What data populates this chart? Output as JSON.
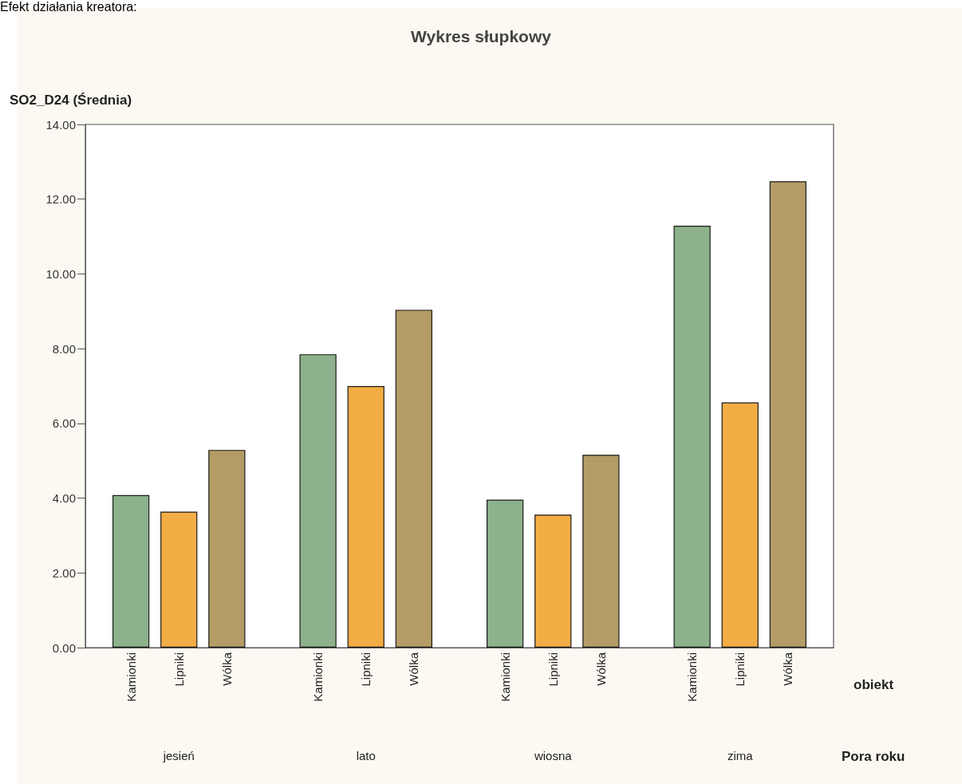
{
  "chart_data": {
    "type": "bar",
    "title": "Wykres słupkowy",
    "ylabel": "SO2_D24 (Średnia)",
    "xlabel": "Pora roku",
    "legend_title": "obiekt",
    "annotations": [
      "Efekt działania kreatora:"
    ],
    "categories": [
      "jesień",
      "lato",
      "wiosna",
      "zima"
    ],
    "series": [
      {
        "name": "Kamionki",
        "color": "#8db28b",
        "values": [
          4.08,
          7.85,
          3.96,
          11.29
        ]
      },
      {
        "name": "Lipniki",
        "color": "#f2ad45",
        "values": [
          3.64,
          7.0,
          3.56,
          6.56
        ]
      },
      {
        "name": "Wólka",
        "color": "#b49c66",
        "values": [
          5.29,
          9.04,
          5.16,
          12.48
        ]
      }
    ],
    "ylim": [
      0,
      14
    ],
    "yticks": [
      {
        "value": 0,
        "label": "0.00"
      },
      {
        "value": 2,
        "label": "2.00"
      },
      {
        "value": 4,
        "label": "4.00"
      },
      {
        "value": 6,
        "label": "6.00"
      },
      {
        "value": 8,
        "label": "8.00"
      },
      {
        "value": 10,
        "label": "10.00"
      },
      {
        "value": 12,
        "label": "12.00"
      },
      {
        "value": 14,
        "label": "14.00"
      }
    ],
    "grid": false,
    "legend": false
  }
}
